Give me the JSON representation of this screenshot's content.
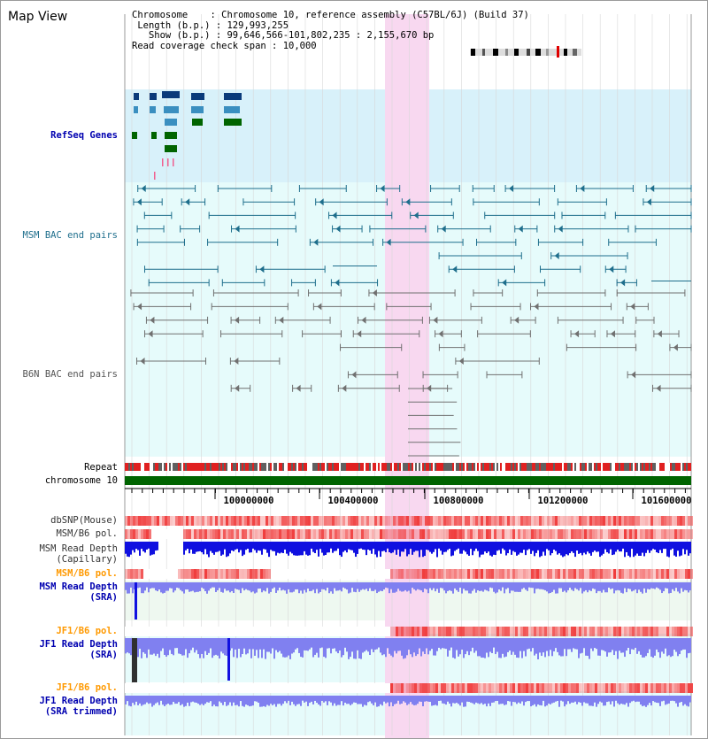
{
  "view_title": "Map View",
  "info": {
    "chromosome_label": "Chromosome",
    "chromosome_value": "Chromosome 10, reference assembly (C57BL/6J) (Build 37)",
    "length_label": "Length (b.p.)",
    "length_value": "129,993,255",
    "show_label": "Show (b.p.)",
    "show_value": "99,646,566-101,802,235 : 2,155,670 bp",
    "coverage_label": "Read coverage check span",
    "coverage_value": "10,000"
  },
  "track_labels": {
    "refseq": "RefSeq Genes",
    "msm_bac": "MSM BAC end pairs",
    "b6n_bac": "B6N BAC end pairs",
    "repeat": "Repeat",
    "chromosome": "chromosome 10",
    "dbsnp": "dbSNP(Mouse)",
    "msm_b6_pol_1": "MSM/B6 pol.",
    "msm_depth_cap": "MSM Read Depth\n(Capillary)",
    "msm_b6_pol_2": "MSM/B6 pol.",
    "msm_depth_sra": "MSM Read Depth\n(SRA)",
    "jf1_b6_pol_1": "JF1/B6 pol.",
    "jf1_depth_sra": "JF1 Read Depth\n(SRA)",
    "jf1_b6_pol_2": "JF1/B6 pol.",
    "jf1_depth_trim": "JF1 Read Depth\n(SRA trimmed)"
  },
  "axis_ticks": [
    "100000000",
    "100400000",
    "100800000",
    "101200000",
    "101600000"
  ],
  "colors": {
    "refseq_bg": "#d8f1fa",
    "bac_bg": "#e6fbfb",
    "highlight": "#f8d8f0",
    "chromosome_bar": "#006400",
    "msm_line": "#1e6e8c",
    "b6n_line": "#707070",
    "depth_dark": "#1010e0",
    "depth_light": "#8080f0",
    "snp_red": "#f04040"
  }
}
